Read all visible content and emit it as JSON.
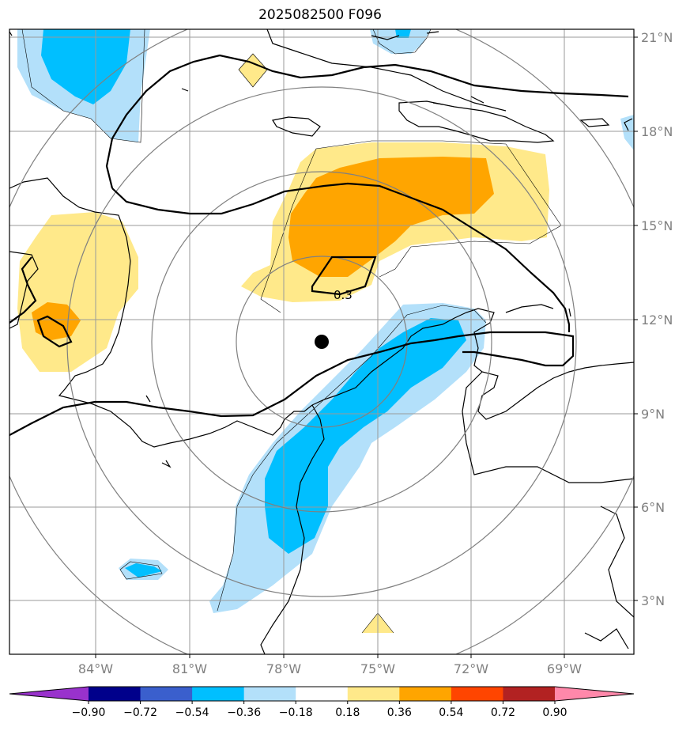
{
  "title": "2025082500 F096",
  "map": {
    "lat_labels": [
      "21°N",
      "18°N",
      "15°N",
      "12°N",
      "9°N",
      "6°N",
      "3°N"
    ],
    "lon_labels": [
      "84°W",
      "81°W",
      "78°W",
      "75°W",
      "72°W",
      "69°W"
    ],
    "contour_label": "0.3",
    "colors": {
      "light_blue": "#b3e0fa",
      "blue": "#00bfff",
      "light_yellow": "#ffe98a",
      "orange": "#ffa500",
      "grid": "#9a9a9a",
      "range_rings": "#808080",
      "coast": "#000000"
    }
  },
  "colorbar": {
    "ticks": [
      "−0.90",
      "−0.72",
      "−0.54",
      "−0.36",
      "−0.18",
      "0.18",
      "0.36",
      "0.54",
      "0.72",
      "0.90"
    ],
    "colors": [
      "#9932cc",
      "#00008b",
      "#3a5fcd",
      "#00bfff",
      "#b3e0fa",
      "#ffffff",
      "#ffe98a",
      "#ffa500",
      "#ff4500",
      "#b22222",
      "#ff88aa"
    ]
  }
}
